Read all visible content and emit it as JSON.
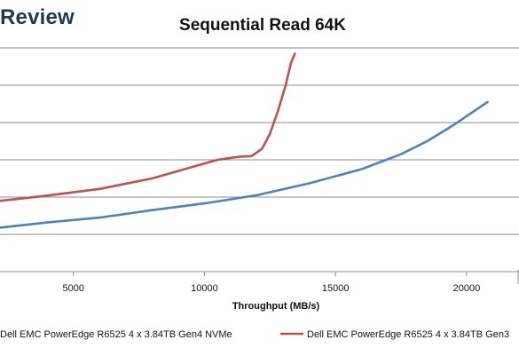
{
  "brand": {
    "logo_text": "Review"
  },
  "chart_data": {
    "type": "line",
    "title": "Sequential Read 64K",
    "xlabel": "Throughput (MB/s)",
    "ylabel": "",
    "xlim": [
      2200,
      22000
    ],
    "ylim": [
      0,
      6
    ],
    "x_ticks": [
      5000,
      10000,
      15000,
      20000
    ],
    "grid": true,
    "legend_position": "bottom",
    "series": [
      {
        "name": "Dell EMC PowerEdge R6525 4 x 3.84TB Gen4 NVMe",
        "color": "#4f81bd",
        "points": [
          [
            2200,
            1.18
          ],
          [
            4000,
            1.32
          ],
          [
            6000,
            1.45
          ],
          [
            8000,
            1.65
          ],
          [
            10000,
            1.83
          ],
          [
            12000,
            2.05
          ],
          [
            14000,
            2.37
          ],
          [
            16000,
            2.75
          ],
          [
            17500,
            3.15
          ],
          [
            18500,
            3.5
          ],
          [
            19500,
            3.93
          ],
          [
            20800,
            4.55
          ]
        ]
      },
      {
        "name": "Dell EMC PowerEdge R6525 4 x 3.84TB Gen3",
        "color": "#c0504d",
        "points": [
          [
            2200,
            1.9
          ],
          [
            3000,
            1.96
          ],
          [
            4000,
            2.04
          ],
          [
            6000,
            2.22
          ],
          [
            8000,
            2.5
          ],
          [
            9500,
            2.8
          ],
          [
            10500,
            3.0
          ],
          [
            11300,
            3.08
          ],
          [
            11800,
            3.1
          ],
          [
            12200,
            3.3
          ],
          [
            12500,
            3.7
          ],
          [
            12800,
            4.3
          ],
          [
            13100,
            5.0
          ],
          [
            13300,
            5.6
          ],
          [
            13450,
            5.85
          ]
        ]
      }
    ]
  }
}
